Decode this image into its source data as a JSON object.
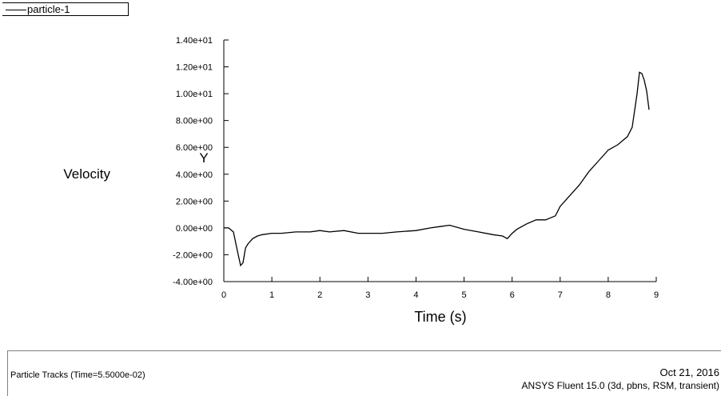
{
  "legend": {
    "label": "particle-1"
  },
  "footer": {
    "left": "Particle Tracks  (Time=5.5000e-02)",
    "date": "Oct 21, 2016",
    "software": "ANSYS Fluent 15.0 (3d, pbns, RSM, transient)"
  },
  "chart_data": {
    "type": "line",
    "title": "",
    "xlabel": "Time (s)",
    "ylabel_line1": "Y",
    "ylabel_line2": "Velocity",
    "xlim": [
      0,
      9
    ],
    "ylim": [
      -4,
      14
    ],
    "xticks": [
      "0",
      "1",
      "2",
      "3",
      "4",
      "5",
      "6",
      "7",
      "8",
      "9"
    ],
    "yticks": [
      "-4.00e+00",
      "-2.00e+00",
      "0.00e+00",
      "2.00e+00",
      "4.00e+00",
      "6.00e+00",
      "8.00e+00",
      "1.00e+01",
      "1.20e+01",
      "1.40e+01"
    ],
    "grid": false,
    "legend_position": "top-left",
    "series": [
      {
        "name": "particle-1",
        "color": "#000000",
        "x": [
          0,
          0.1,
          0.2,
          0.3,
          0.35,
          0.4,
          0.45,
          0.5,
          0.6,
          0.7,
          0.8,
          1.0,
          1.2,
          1.5,
          1.8,
          2.0,
          2.2,
          2.5,
          2.8,
          3.0,
          3.3,
          3.6,
          4.0,
          4.3,
          4.5,
          4.7,
          5.0,
          5.3,
          5.6,
          5.8,
          5.9,
          6.0,
          6.1,
          6.3,
          6.5,
          6.7,
          6.9,
          7.0,
          7.2,
          7.4,
          7.6,
          7.8,
          8.0,
          8.2,
          8.4,
          8.5,
          8.6,
          8.65,
          8.7,
          8.75,
          8.8,
          8.85
        ],
        "values": [
          0,
          0,
          -0.3,
          -2.0,
          -2.8,
          -2.6,
          -1.5,
          -1.2,
          -0.8,
          -0.6,
          -0.5,
          -0.4,
          -0.4,
          -0.3,
          -0.3,
          -0.2,
          -0.3,
          -0.2,
          -0.4,
          -0.4,
          -0.4,
          -0.3,
          -0.2,
          0.0,
          0.1,
          0.2,
          -0.1,
          -0.3,
          -0.5,
          -0.6,
          -0.8,
          -0.4,
          -0.1,
          0.3,
          0.6,
          0.6,
          0.9,
          1.6,
          2.4,
          3.2,
          4.2,
          5.0,
          5.8,
          6.2,
          6.8,
          7.5,
          10.0,
          11.6,
          11.5,
          11.0,
          10.2,
          8.8
        ]
      }
    ]
  }
}
